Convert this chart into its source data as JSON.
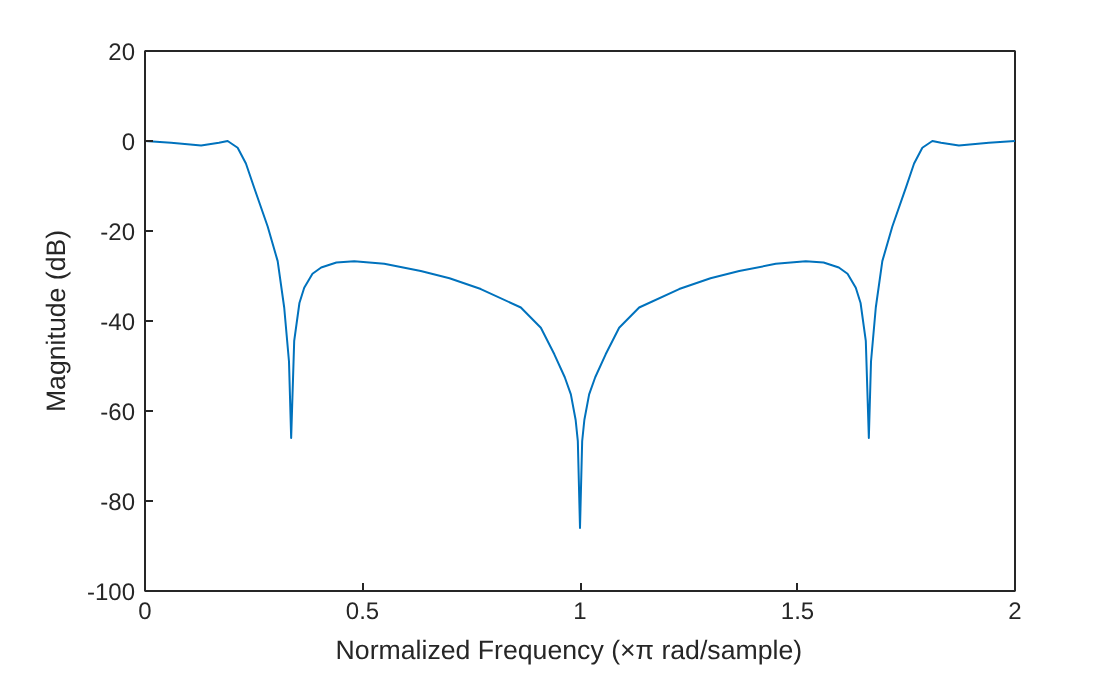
{
  "chart_data": {
    "type": "line",
    "xlabel": "Normalized  Frequency  (×π  rad/sample)",
    "ylabel": "Magnitude (dB)",
    "xlim": [
      0,
      2
    ],
    "ylim": [
      -100,
      20
    ],
    "xticks": [
      0,
      0.5,
      1,
      1.5,
      2
    ],
    "yticks": [
      -100,
      -80,
      -60,
      -40,
      -20,
      0,
      20
    ],
    "grid": false,
    "series": [
      {
        "color": "#0072bd",
        "x": [
          0,
          0.06,
          0.129,
          0.17,
          0.19,
          0.213,
          0.232,
          0.251,
          0.282,
          0.305,
          0.32,
          0.331,
          0.336,
          0.343,
          0.355,
          0.366,
          0.385,
          0.405,
          0.44,
          0.481,
          0.55,
          0.634,
          0.7,
          0.772,
          0.864,
          0.91,
          0.941,
          0.965,
          0.979,
          0.99,
          0.995,
          1.0,
          1.005,
          1.01,
          1.021,
          1.035,
          1.059,
          1.09,
          1.136,
          1.228,
          1.3,
          1.366,
          1.45,
          1.519,
          1.56,
          1.595,
          1.615,
          1.634,
          1.645,
          1.657,
          1.664,
          1.669,
          1.68,
          1.695,
          1.718,
          1.749,
          1.768,
          1.787,
          1.81,
          1.83,
          1.871,
          1.94,
          2
        ],
        "values": [
          0,
          -0.4,
          -1,
          -0.4,
          0,
          -1.5,
          -5,
          -10.4,
          -19,
          -26.7,
          -37,
          -49,
          -66,
          -44.4,
          -36,
          -32.6,
          -29.5,
          -28.1,
          -27,
          -26.7,
          -27.3,
          -28.9,
          -30.5,
          -32.9,
          -37,
          -41.5,
          -47.4,
          -52.5,
          -56.3,
          -62,
          -66.7,
          -86,
          -66.7,
          -62,
          -56.3,
          -52.5,
          -47.4,
          -41.5,
          -37,
          -32.9,
          -30.5,
          -28.9,
          -27.3,
          -26.7,
          -27,
          -28.1,
          -29.5,
          -32.6,
          -36,
          -44.4,
          -66,
          -49,
          -37,
          -26.7,
          -19,
          -10.4,
          -5,
          -1.5,
          0,
          -0.4,
          -1,
          -0.4,
          0
        ]
      }
    ]
  }
}
